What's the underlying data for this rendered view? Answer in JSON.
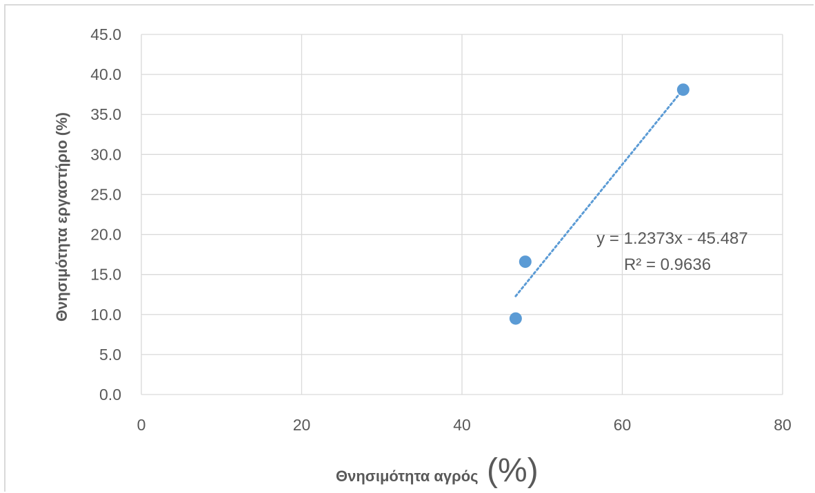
{
  "chart_data": {
    "type": "scatter",
    "xlabel": "Θνησιμότητα αγρός",
    "xlabel_unit": "(%)",
    "ylabel": "Θνησιμότητα εργαστήριο (%)",
    "xlim": [
      0,
      80
    ],
    "ylim": [
      0,
      45
    ],
    "x_ticks": [
      "0",
      "20",
      "40",
      "60",
      "80"
    ],
    "y_ticks": [
      "0.0",
      "5.0",
      "10.0",
      "15.0",
      "20.0",
      "25.0",
      "30.0",
      "35.0",
      "40.0",
      "45.0"
    ],
    "grid": true,
    "marker_color": "#5b9bd5",
    "trendline_color": "#5b9bd5",
    "series": [
      {
        "x": [
          46.7,
          47.9,
          67.6
        ],
        "y": [
          9.5,
          16.6,
          38.1
        ]
      }
    ],
    "trendline": {
      "slope": 1.2373,
      "intercept": -45.487,
      "x_range": [
        46.7,
        67.6
      ],
      "equation": "y = 1.2373x - 45.487",
      "r_squared": "R² = 0.9636"
    }
  }
}
